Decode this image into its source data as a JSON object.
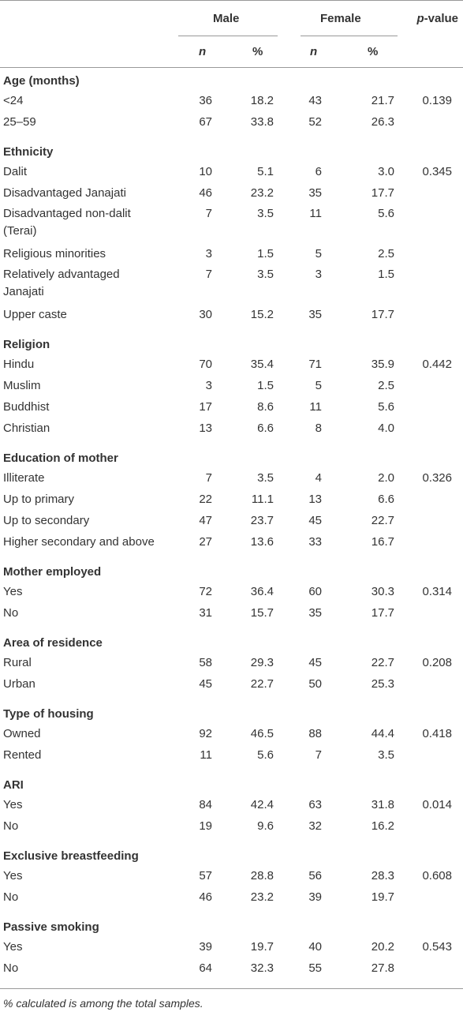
{
  "header": {
    "male": "Male",
    "female": "Female",
    "pvalue_p": "p",
    "pvalue_rest": "-value",
    "n": "n",
    "pct": "%"
  },
  "sections": [
    {
      "title": "Age (months)",
      "p": "0.139",
      "rows": [
        {
          "label": "<24",
          "mn": "36",
          "mp": "18.2",
          "fn": "43",
          "fp": "21.7"
        },
        {
          "label": "25–59",
          "mn": "67",
          "mp": "33.8",
          "fn": "52",
          "fp": "26.3"
        }
      ]
    },
    {
      "title": "Ethnicity",
      "p": "0.345",
      "rows": [
        {
          "label": "Dalit",
          "mn": "10",
          "mp": "5.1",
          "fn": "6",
          "fp": "3.0"
        },
        {
          "label": "Disadvantaged Janajati",
          "mn": "46",
          "mp": "23.2",
          "fn": "35",
          "fp": "17.7"
        },
        {
          "label": "Disadvantaged non-dalit (Terai)",
          "mn": "7",
          "mp": "3.5",
          "fn": "11",
          "fp": "5.6",
          "tall": true
        },
        {
          "label": "Religious minorities",
          "mn": "3",
          "mp": "1.5",
          "fn": "5",
          "fp": "2.5"
        },
        {
          "label": "Relatively advantaged Janajati",
          "mn": "7",
          "mp": "3.5",
          "fn": "3",
          "fp": "1.5",
          "tall": true
        },
        {
          "label": "Upper caste",
          "mn": "30",
          "mp": "15.2",
          "fn": "35",
          "fp": "17.7"
        }
      ]
    },
    {
      "title": "Religion",
      "p": "0.442",
      "rows": [
        {
          "label": "Hindu",
          "mn": "70",
          "mp": "35.4",
          "fn": "71",
          "fp": "35.9"
        },
        {
          "label": "Muslim",
          "mn": "3",
          "mp": "1.5",
          "fn": "5",
          "fp": "2.5"
        },
        {
          "label": "Buddhist",
          "mn": "17",
          "mp": "8.6",
          "fn": "11",
          "fp": "5.6"
        },
        {
          "label": "Christian",
          "mn": "13",
          "mp": "6.6",
          "fn": "8",
          "fp": "4.0"
        }
      ]
    },
    {
      "title": "Education of mother",
      "p": "0.326",
      "rows": [
        {
          "label": "Illiterate",
          "mn": "7",
          "mp": "3.5",
          "fn": "4",
          "fp": "2.0"
        },
        {
          "label": "Up to primary",
          "mn": "22",
          "mp": "11.1",
          "fn": "13",
          "fp": "6.6"
        },
        {
          "label": "Up to secondary",
          "mn": "47",
          "mp": "23.7",
          "fn": "45",
          "fp": "22.7"
        },
        {
          "label": "Higher secondary and above",
          "mn": "27",
          "mp": "13.6",
          "fn": "33",
          "fp": "16.7"
        }
      ]
    },
    {
      "title": "Mother employed",
      "p": "0.314",
      "rows": [
        {
          "label": "Yes",
          "mn": "72",
          "mp": "36.4",
          "fn": "60",
          "fp": "30.3"
        },
        {
          "label": "No",
          "mn": "31",
          "mp": "15.7",
          "fn": "35",
          "fp": "17.7"
        }
      ]
    },
    {
      "title": "Area of residence",
      "p": "0.208",
      "rows": [
        {
          "label": "Rural",
          "mn": "58",
          "mp": "29.3",
          "fn": "45",
          "fp": "22.7"
        },
        {
          "label": "Urban",
          "mn": "45",
          "mp": "22.7",
          "fn": "50",
          "fp": "25.3"
        }
      ]
    },
    {
      "title": "Type of housing",
      "p": "0.418",
      "rows": [
        {
          "label": "Owned",
          "mn": "92",
          "mp": "46.5",
          "fn": "88",
          "fp": "44.4"
        },
        {
          "label": "Rented",
          "mn": "11",
          "mp": "5.6",
          "fn": "7",
          "fp": "3.5"
        }
      ]
    },
    {
      "title": "ARI",
      "p": "0.014",
      "rows": [
        {
          "label": "Yes",
          "mn": "84",
          "mp": "42.4",
          "fn": "63",
          "fp": "31.8"
        },
        {
          "label": "No",
          "mn": "19",
          "mp": "9.6",
          "fn": "32",
          "fp": "16.2"
        }
      ]
    },
    {
      "title": "Exclusive breastfeeding",
      "p": "0.608",
      "rows": [
        {
          "label": "Yes",
          "mn": "57",
          "mp": "28.8",
          "fn": "56",
          "fp": "28.3"
        },
        {
          "label": "No",
          "mn": "46",
          "mp": "23.2",
          "fn": "39",
          "fp": "19.7"
        }
      ]
    },
    {
      "title": "Passive smoking",
      "p": "0.543",
      "rows": [
        {
          "label": "Yes",
          "mn": "39",
          "mp": "19.7",
          "fn": "40",
          "fp": "20.2"
        },
        {
          "label": "No",
          "mn": "64",
          "mp": "32.3",
          "fn": "55",
          "fp": "27.8"
        }
      ]
    }
  ],
  "footnote": "% calculated is among the total samples."
}
